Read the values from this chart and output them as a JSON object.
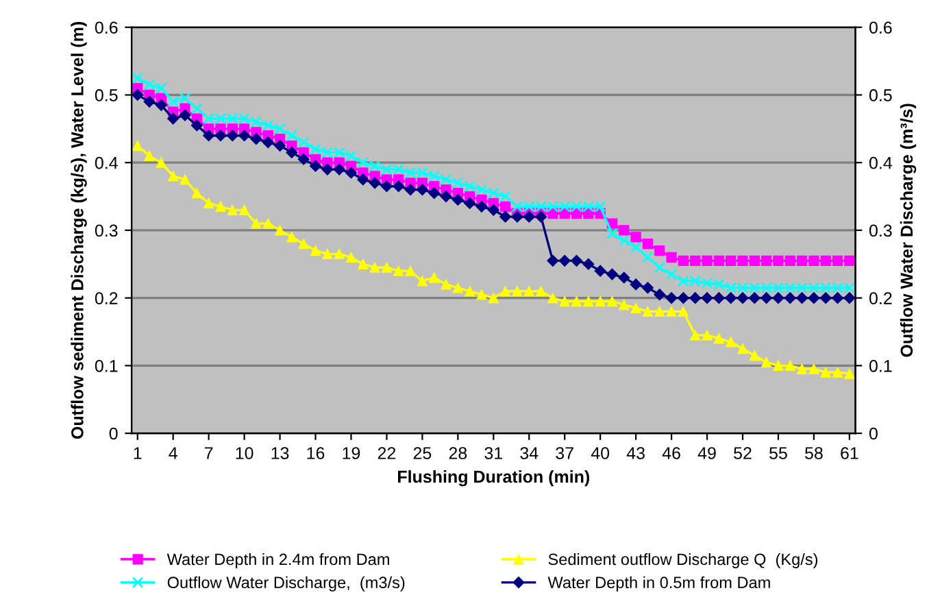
{
  "chart_data": {
    "type": "line",
    "xlabel": "Flushing Duration (min)",
    "ylabel": "Outflow sediment Discharge (kg/s), Water Level (m)",
    "y2label": "Outflow Water Discharge (m³/s)",
    "categories": [
      "1",
      null,
      null,
      "4",
      null,
      null,
      "7",
      null,
      null,
      "10",
      null,
      null,
      "13",
      null,
      null,
      "16",
      null,
      null,
      "19",
      null,
      null,
      "22",
      null,
      null,
      "25",
      null,
      null,
      "28",
      null,
      null,
      "31",
      null,
      null,
      "34",
      null,
      null,
      "37",
      null,
      null,
      "40",
      null,
      null,
      "43",
      null,
      null,
      "46",
      null,
      null,
      "49",
      null,
      null,
      "52",
      null,
      null,
      "55",
      null,
      null,
      "58",
      null,
      null,
      "61"
    ],
    "series": [
      {
        "name": "Water Depth in 2.4m from Dam",
        "color": "#ff00ff",
        "marker": "square",
        "values": [
          0.51,
          0.5,
          0.495,
          0.475,
          0.48,
          0.465,
          0.45,
          0.45,
          0.45,
          0.45,
          0.445,
          0.44,
          0.435,
          0.425,
          0.415,
          0.405,
          0.4,
          0.4,
          0.395,
          0.385,
          0.38,
          0.375,
          0.375,
          0.37,
          0.37,
          0.365,
          0.36,
          0.355,
          0.35,
          0.345,
          0.34,
          0.335,
          0.325,
          0.325,
          0.325,
          0.325,
          0.325,
          0.325,
          0.325,
          0.325,
          0.31,
          0.3,
          0.29,
          0.28,
          0.27,
          0.26,
          0.255,
          0.255,
          0.255,
          0.255,
          0.255,
          0.255,
          0.255,
          0.255,
          0.255,
          0.255,
          0.255,
          0.255,
          0.255,
          0.255,
          0.255
        ]
      },
      {
        "name": "Outflow Water Discharge,  (m3/s)",
        "color": "#00ffff",
        "marker": "cross",
        "axis": "y2",
        "values": [
          0.525,
          0.515,
          0.51,
          0.49,
          0.495,
          0.48,
          0.465,
          0.465,
          0.465,
          0.465,
          0.46,
          0.455,
          0.45,
          0.44,
          0.43,
          0.42,
          0.415,
          0.415,
          0.41,
          0.4,
          0.395,
          0.39,
          0.39,
          0.385,
          0.385,
          0.38,
          0.375,
          0.37,
          0.365,
          0.36,
          0.355,
          0.35,
          0.335,
          0.335,
          0.335,
          0.335,
          0.335,
          0.335,
          0.335,
          0.335,
          0.295,
          0.285,
          0.275,
          0.26,
          0.245,
          0.235,
          0.225,
          0.225,
          0.222,
          0.22,
          0.215,
          0.215,
          0.215,
          0.215,
          0.215,
          0.215,
          0.215,
          0.215,
          0.215,
          0.215,
          0.215
        ]
      },
      {
        "name": "Sediment outflow Discharge Q  (Kg/s)",
        "color": "#ffff00",
        "marker": "triangle",
        "values": [
          0.425,
          0.41,
          0.4,
          0.38,
          0.375,
          0.355,
          0.34,
          0.335,
          0.33,
          0.33,
          0.31,
          0.31,
          0.3,
          0.29,
          0.28,
          0.27,
          0.265,
          0.265,
          0.26,
          0.25,
          0.245,
          0.245,
          0.24,
          0.24,
          0.225,
          0.23,
          0.22,
          0.215,
          0.21,
          0.205,
          0.2,
          0.21,
          0.21,
          0.21,
          0.21,
          0.2,
          0.195,
          0.195,
          0.195,
          0.195,
          0.195,
          0.19,
          0.185,
          0.18,
          0.18,
          0.18,
          0.18,
          0.145,
          0.145,
          0.14,
          0.135,
          0.125,
          0.115,
          0.105,
          0.1,
          0.1,
          0.095,
          0.095,
          0.09,
          0.09,
          0.088
        ]
      },
      {
        "name": "Water Depth in 0.5m from Dam",
        "color": "#000080",
        "marker": "diamond",
        "values": [
          0.5,
          0.49,
          0.485,
          0.465,
          0.47,
          0.455,
          0.44,
          0.44,
          0.44,
          0.44,
          0.435,
          0.43,
          0.425,
          0.415,
          0.405,
          0.395,
          0.39,
          0.39,
          0.385,
          0.375,
          0.37,
          0.365,
          0.365,
          0.36,
          0.36,
          0.355,
          0.35,
          0.345,
          0.34,
          0.335,
          0.33,
          0.32,
          0.32,
          0.32,
          0.32,
          0.255,
          0.255,
          0.255,
          0.25,
          0.24,
          0.235,
          0.23,
          0.22,
          0.215,
          0.205,
          0.2,
          0.2,
          0.2,
          0.2,
          0.2,
          0.2,
          0.2,
          0.2,
          0.2,
          0.2,
          0.2,
          0.2,
          0.2,
          0.2,
          0.2,
          0.2
        ]
      }
    ],
    "ylim": [
      0,
      0.6
    ],
    "yticks": [
      0,
      0.1,
      0.2,
      0.3,
      0.4,
      0.5,
      0.6
    ],
    "y2lim": [
      0,
      0.6
    ],
    "y2ticks": [
      0,
      0.1,
      0.2,
      0.3,
      0.4,
      0.5,
      0.6
    ],
    "grid": "y",
    "legend": "bottom",
    "line_style": "solid"
  }
}
